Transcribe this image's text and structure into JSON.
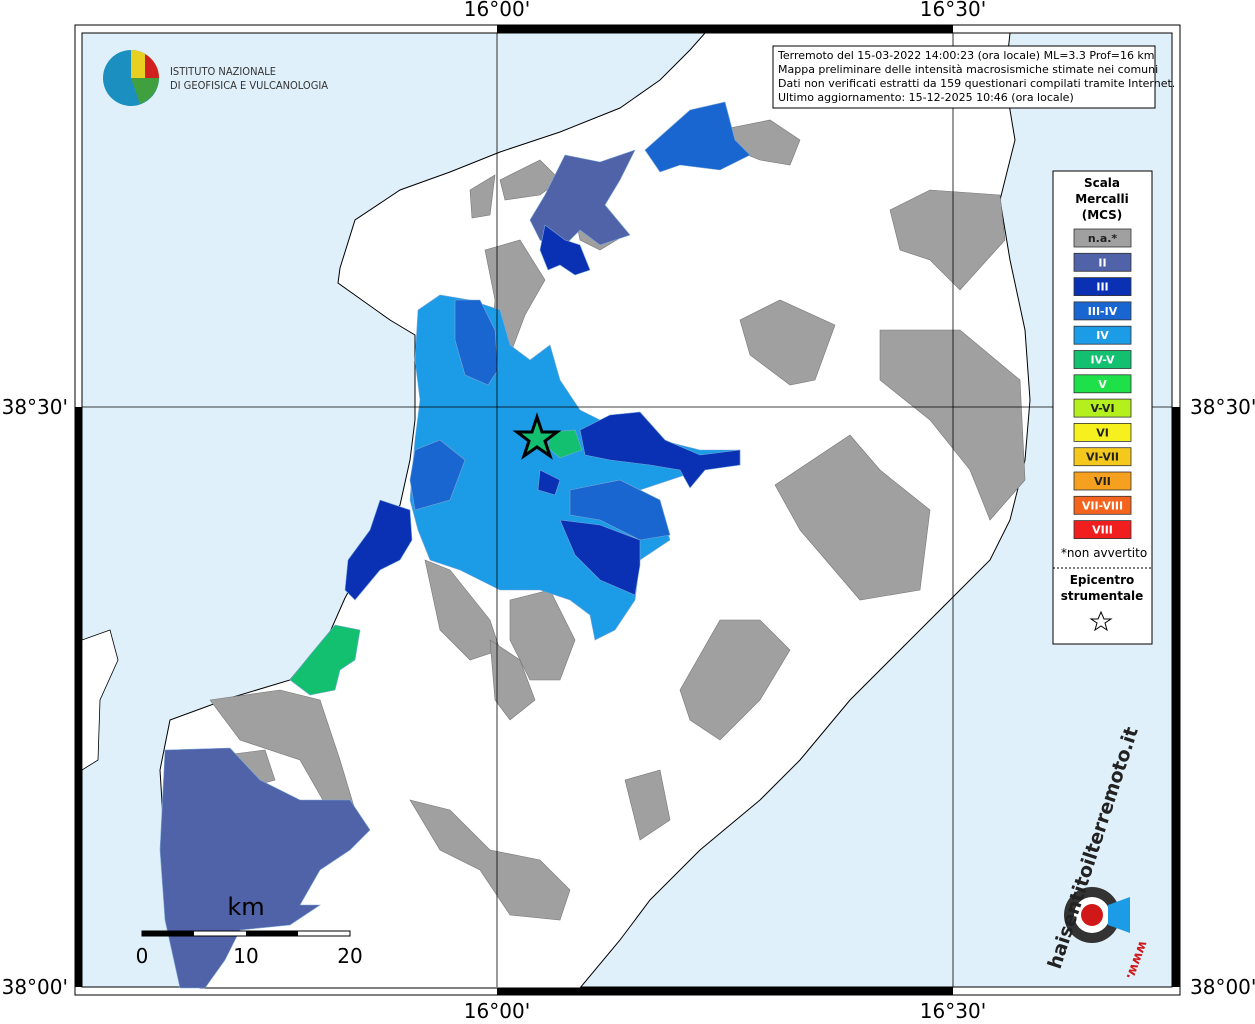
{
  "map": {
    "lon_labels": [
      "16°00'",
      "16°30'"
    ],
    "lat_labels": [
      "38°30'",
      "38°00'"
    ]
  },
  "header": {
    "institute": [
      "ISTITUTO NAZIONALE",
      "DI GEOFISICA E VULCANOLOGIA"
    ],
    "info": [
      "Terremoto del 15-03-2022 14:00:23 (ora locale) ML=3.3 Prof=16 km",
      "Mappa preliminare delle intensità macrosismiche stimate nei comuni",
      "Dati non verificati estratti da 159 questionari compilati tramite Internet.",
      "Ultimo aggiornamento: 15-12-2025 10:46 (ora locale)"
    ]
  },
  "legend": {
    "title": [
      "Scala",
      "Mercalli",
      "(MCS)"
    ],
    "items": [
      {
        "label": "n.a.*",
        "color": "#a0a0a0"
      },
      {
        "label": "II",
        "color": "#5062a8"
      },
      {
        "label": "III",
        "color": "#0a30b4"
      },
      {
        "label": "III-IV",
        "color": "#1a66d0"
      },
      {
        "label": "IV",
        "color": "#1c9be6"
      },
      {
        "label": "IV-V",
        "color": "#12c070"
      },
      {
        "label": "V",
        "color": "#1ee14a"
      },
      {
        "label": "V-VI",
        "color": "#b4f01e"
      },
      {
        "label": "VI",
        "color": "#f5f01e"
      },
      {
        "label": "VI-VII",
        "color": "#f5c81e"
      },
      {
        "label": "VII",
        "color": "#f5a01e"
      },
      {
        "label": "VII-VIII",
        "color": "#f5641e"
      },
      {
        "label": "VIII",
        "color": "#f01e1e"
      }
    ],
    "note": "*non avvertito",
    "epicenter": [
      "Epicentro",
      "strumentale"
    ]
  },
  "scale_bar": {
    "unit": "km",
    "ticks": [
      0,
      10,
      20
    ]
  },
  "watermark": {
    "site": "haisentitoilterremoto.it",
    "prefix": "www."
  }
}
